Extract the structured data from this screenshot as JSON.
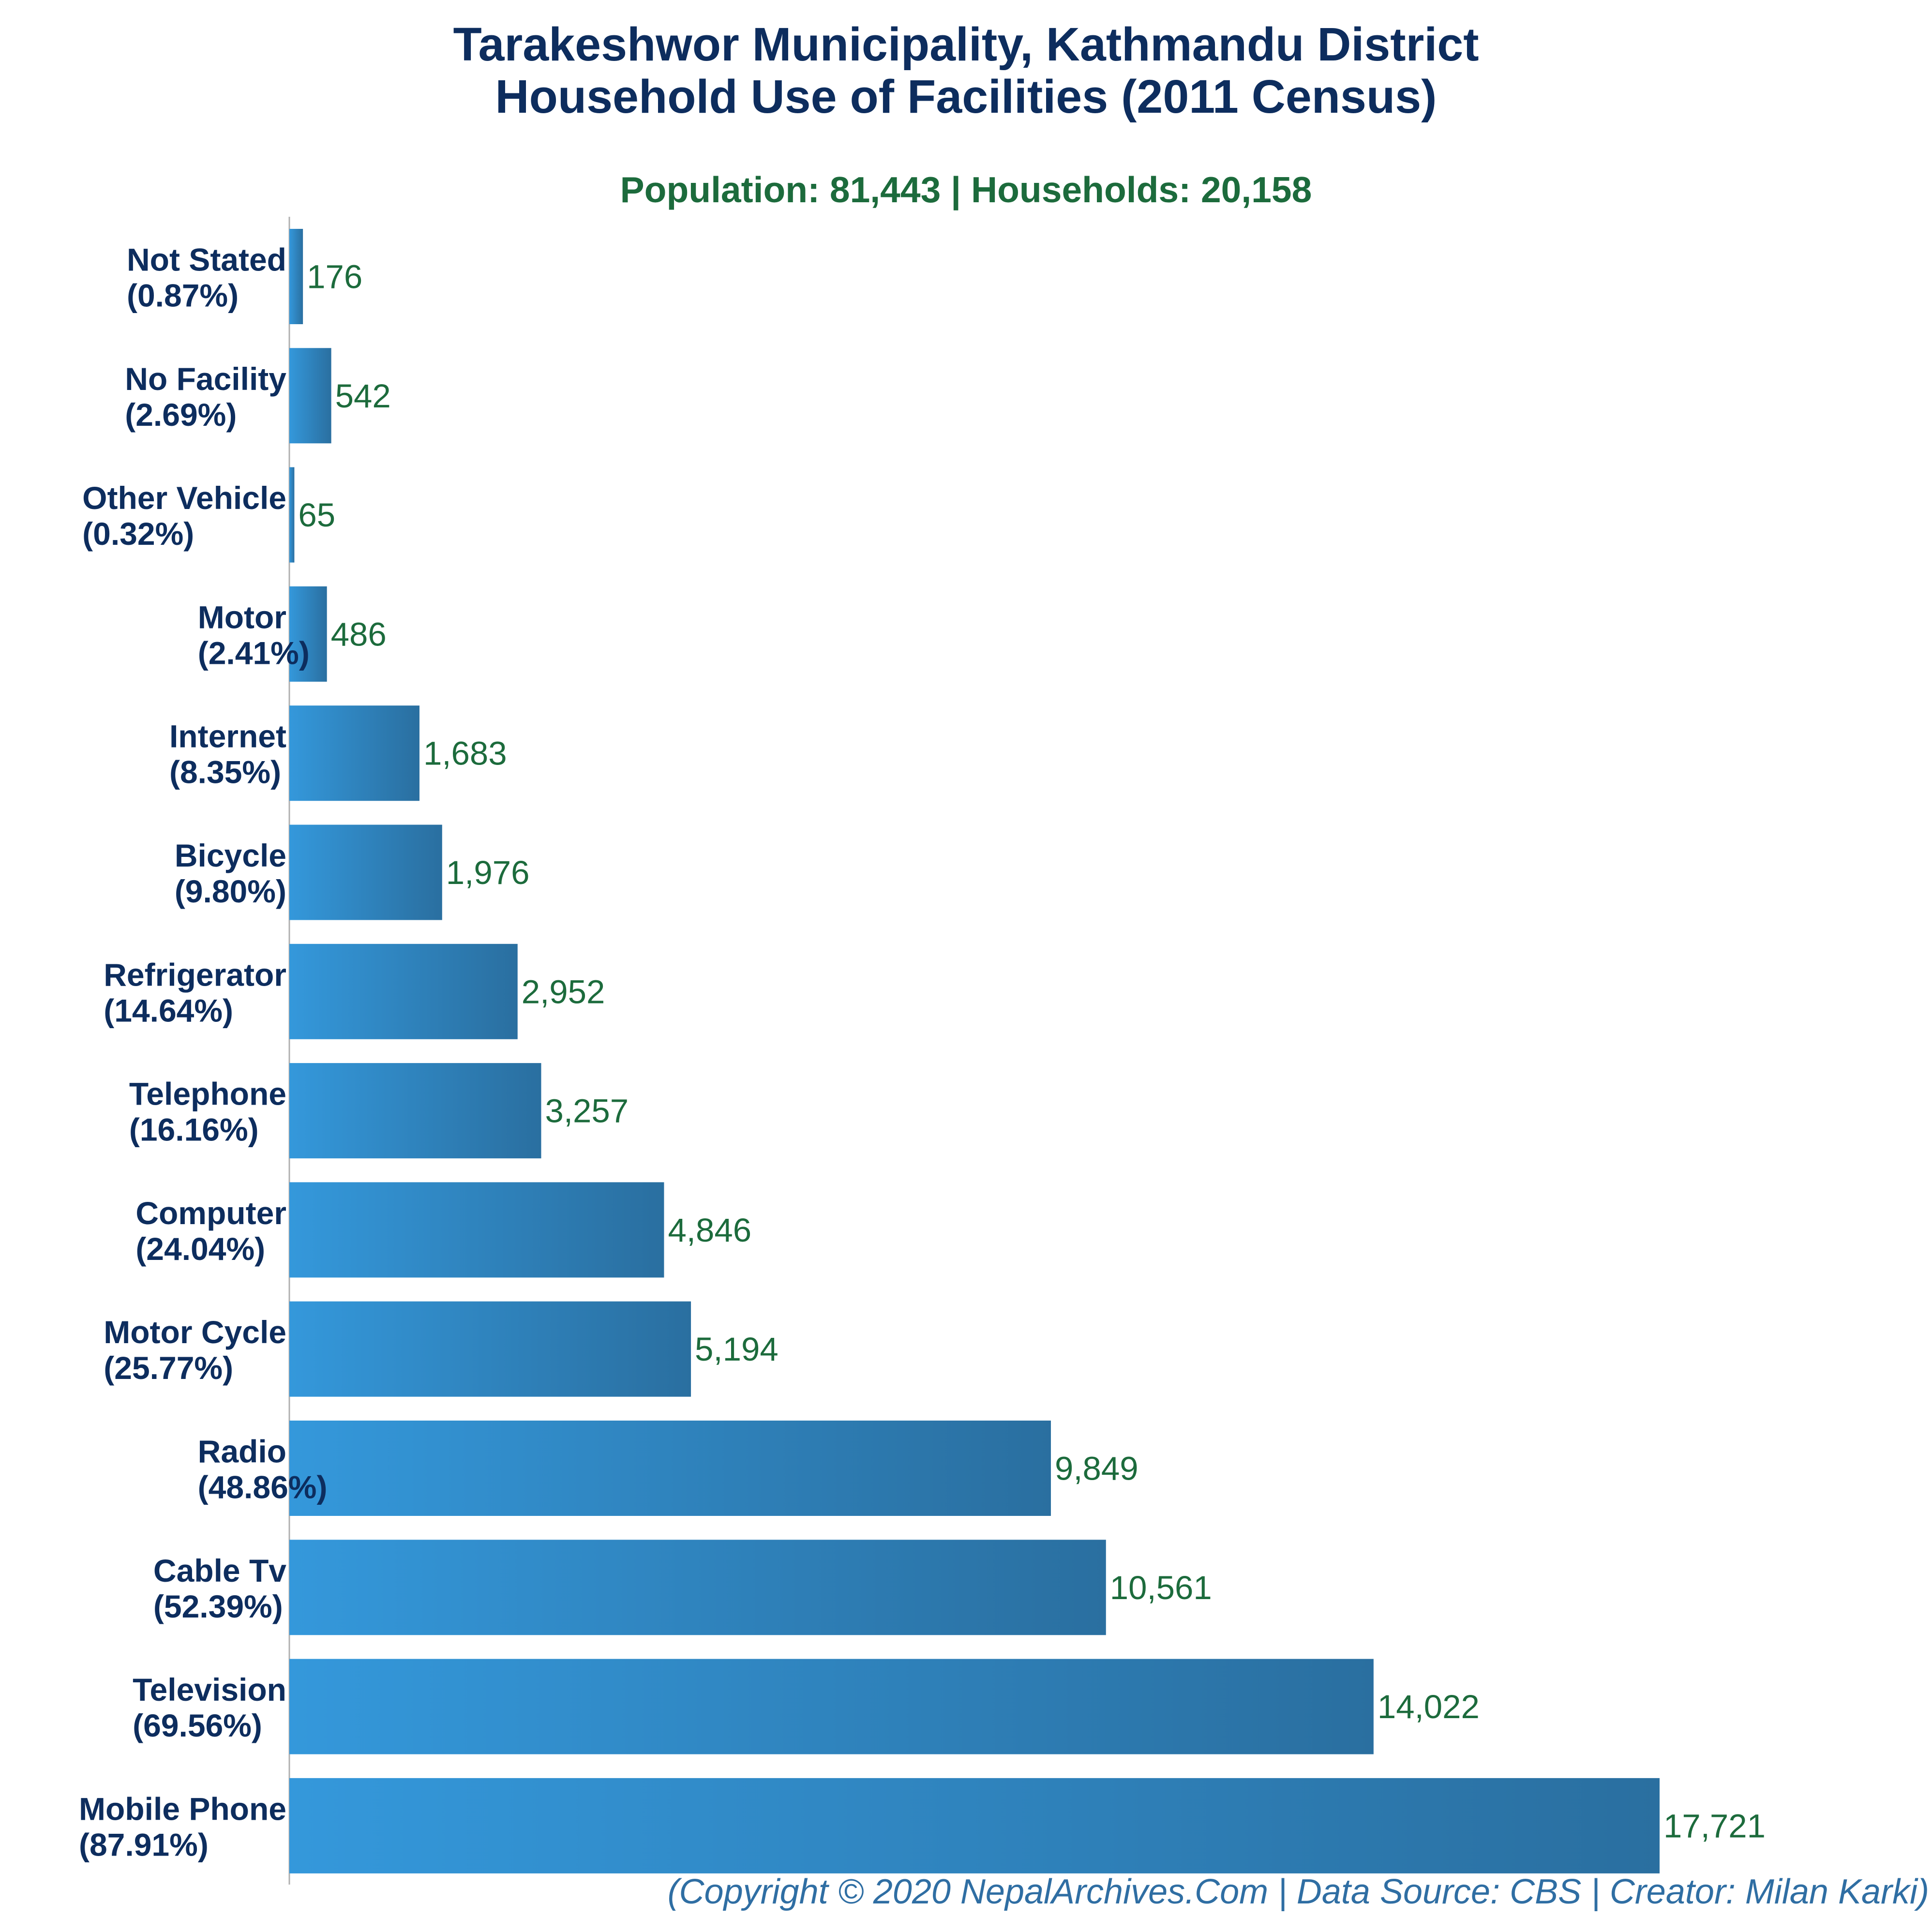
{
  "chart_data": {
    "type": "bar",
    "orientation": "horizontal",
    "title": "Tarakeshwor Municipality, Kathmandu District",
    "title_line2": "Household Use of Facilities (2011 Census)",
    "subtitle": "Population: 81,443 | Households: 20,158",
    "categories": [
      "Not Stated",
      "No Facility",
      "Other Vehicle",
      "Motor",
      "Internet",
      "Bicycle",
      "Refrigerator",
      "Telephone",
      "Computer",
      "Motor Cycle",
      "Radio",
      "Cable Tv",
      "Television",
      "Mobile Phone"
    ],
    "percent_labels": [
      "(0.87%)",
      "(2.69%)",
      "(0.32%)",
      "(2.41%)",
      "(8.35%)",
      "(9.80%)",
      "(14.64%)",
      "(16.16%)",
      "(24.04%)",
      "(25.77%)",
      "(48.86%)",
      "(52.39%)",
      "(69.56%)",
      "(87.91%)"
    ],
    "values": [
      176,
      542,
      65,
      486,
      1683,
      1976,
      2952,
      3257,
      4846,
      5194,
      9849,
      10561,
      14022,
      17721
    ],
    "value_labels": [
      "176",
      "542",
      "65",
      "486",
      "1,683",
      "1,976",
      "2,952",
      "3,257",
      "4,846",
      "5,194",
      "9,849",
      "10,561",
      "14,022",
      "17,721"
    ],
    "xlim": [
      0,
      17721
    ],
    "grid": false,
    "colors": {
      "bar_start": "#3498db",
      "bar_end": "#2a6fa0",
      "label": "#0d2d5e",
      "value_label": "#1c6b3c",
      "axis": "#b0b0b0"
    }
  },
  "footer": "(Copyright © 2020 NepalArchives.Com | Data Source: CBS | Creator: Milan Karki)"
}
